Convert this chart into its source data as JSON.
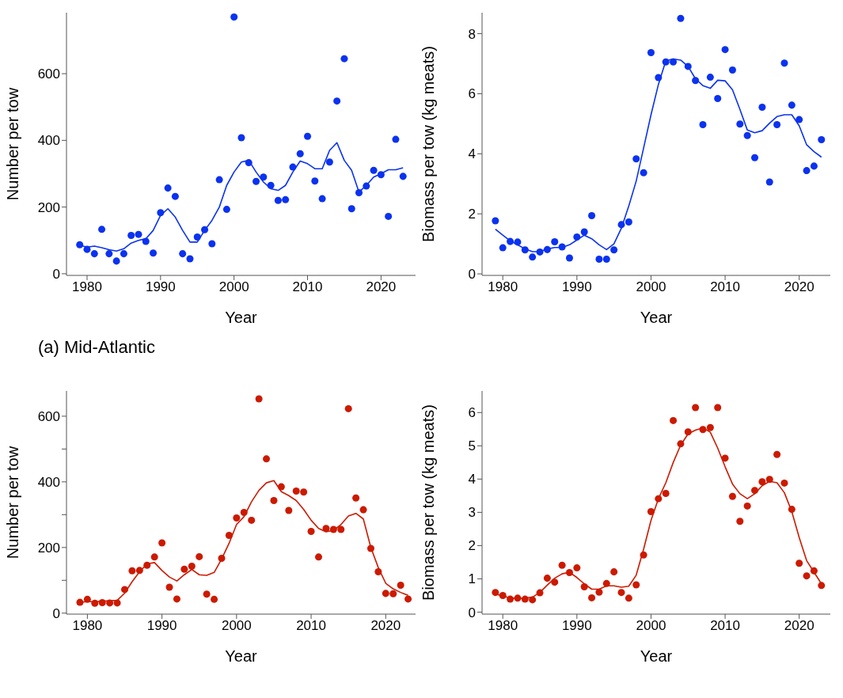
{
  "chart_data": [
    {
      "type": "scatter",
      "xlabel": "Year",
      "ylabel": "Number per tow",
      "annotations": [
        "(a) Mid-Atlantic"
      ],
      "line_style": "solid",
      "x": [
        1979,
        1980,
        1981,
        1982,
        1983,
        1984,
        1985,
        1986,
        1987,
        1988,
        1989,
        1990,
        1991,
        1992,
        1993,
        1994,
        1995,
        1996,
        1997,
        1998,
        1999,
        2000,
        2001,
        2002,
        2003,
        2004,
        2005,
        2006,
        2007,
        2008,
        2009,
        2010,
        2011,
        2012,
        2013,
        2014,
        2015,
        2016,
        2017,
        2018,
        2019,
        2020,
        2021,
        2022,
        2023
      ],
      "xlim": [
        1977.2,
        2024.7
      ],
      "xticks": [
        1980,
        1990,
        2000,
        2010,
        2020
      ],
      "ylim": [
        -5,
        783
      ],
      "yticks": [
        0,
        200,
        400,
        600
      ],
      "series": [
        {
          "marker": "circle",
          "color": "#0a32f0",
          "values": [
            87,
            73,
            60,
            133,
            60,
            38,
            60,
            115,
            118,
            97,
            62,
            183,
            257,
            232,
            60,
            45,
            110,
            132,
            90,
            282,
            193,
            770,
            408,
            333,
            277,
            290,
            265,
            220,
            222,
            320,
            360,
            412,
            278,
            225,
            335,
            518,
            645,
            195,
            243,
            263,
            310,
            297,
            172,
            403,
            292
          ]
        },
        {
          "type": "line",
          "marker": "none",
          "color": "#0a32f0",
          "values": [
            85,
            80,
            83,
            78,
            72,
            68,
            75,
            92,
            100,
            105,
            130,
            175,
            195,
            170,
            130,
            95,
            95,
            130,
            160,
            200,
            265,
            305,
            335,
            340,
            305,
            275,
            255,
            250,
            265,
            305,
            338,
            330,
            315,
            315,
            370,
            393,
            340,
            310,
            245,
            265,
            290,
            300,
            312,
            312,
            318
          ]
        }
      ]
    },
    {
      "type": "scatter",
      "xlabel": "Year",
      "ylabel": "Biomass per tow (kg meats)",
      "line_style": "solid",
      "x": [
        1979,
        1980,
        1981,
        1982,
        1983,
        1984,
        1985,
        1986,
        1987,
        1988,
        1989,
        1990,
        1991,
        1992,
        1993,
        1994,
        1995,
        1996,
        1997,
        1998,
        1999,
        2000,
        2001,
        2002,
        2003,
        2004,
        2005,
        2006,
        2007,
        2008,
        2009,
        2010,
        2011,
        2012,
        2013,
        2014,
        2015,
        2016,
        2017,
        2018,
        2019,
        2020,
        2021,
        2022,
        2023
      ],
      "xlim": [
        1977.2,
        2024.2
      ],
      "xticks": [
        1980,
        1990,
        2000,
        2010,
        2020
      ],
      "ylim": [
        -0.05,
        8.7
      ],
      "yticks": [
        0,
        2,
        4,
        6,
        8
      ],
      "series": [
        {
          "marker": "circle",
          "color": "#0a32f0",
          "values": [
            1.77,
            0.87,
            1.08,
            1.06,
            0.8,
            0.56,
            0.73,
            0.81,
            1.07,
            0.9,
            0.53,
            1.23,
            1.4,
            1.94,
            0.49,
            0.49,
            0.8,
            1.64,
            1.73,
            3.83,
            3.37,
            7.37,
            6.54,
            7.06,
            7.06,
            8.51,
            6.91,
            6.44,
            4.97,
            6.55,
            5.84,
            7.47,
            6.79,
            4.99,
            4.61,
            3.87,
            5.55,
            3.06,
            4.97,
            7.02,
            5.62,
            5.14,
            3.44,
            3.59,
            4.47
          ]
        },
        {
          "type": "line",
          "marker": "none",
          "color": "#0a32f0",
          "values": [
            1.49,
            1.29,
            1.1,
            0.97,
            0.83,
            0.74,
            0.74,
            0.83,
            0.88,
            0.88,
            0.97,
            1.13,
            1.29,
            1.17,
            0.97,
            0.81,
            1.0,
            1.52,
            2.26,
            3.09,
            4.19,
            5.3,
            6.31,
            7.1,
            7.16,
            7.12,
            6.91,
            6.5,
            6.27,
            6.18,
            6.45,
            6.43,
            6.13,
            5.48,
            4.79,
            4.7,
            4.77,
            5.02,
            5.24,
            5.3,
            5.3,
            4.93,
            4.3,
            4.07,
            3.89
          ]
        }
      ]
    },
    {
      "type": "scatter",
      "xlabel": "Year",
      "ylabel": "Number per tow",
      "line_style": "solid",
      "x": [
        1979,
        1980,
        1981,
        1982,
        1983,
        1984,
        1985,
        1986,
        1987,
        1988,
        1989,
        1990,
        1991,
        1992,
        1993,
        1994,
        1995,
        1996,
        1997,
        1998,
        1999,
        2000,
        2001,
        2002,
        2003,
        2004,
        2005,
        2006,
        2007,
        2008,
        2009,
        2010,
        2011,
        2012,
        2013,
        2014,
        2015,
        2016,
        2017,
        2018,
        2019,
        2020,
        2021,
        2022,
        2023
      ],
      "xlim": [
        1977.2,
        2024.0
      ],
      "xticks": [
        1980,
        1990,
        2000,
        2010,
        2020
      ],
      "ylim": [
        -3,
        677
      ],
      "yticks": [
        0,
        {
          "value": 100,
          "label": null
        },
        200,
        {
          "value": 300,
          "label": null
        },
        400,
        {
          "value": 500,
          "label": null
        },
        600
      ],
      "series": [
        {
          "marker": "circle",
          "color": "#cc1a00",
          "values": [
            33,
            42,
            30,
            32,
            31,
            31,
            72,
            129,
            130,
            146,
            171,
            214,
            79,
            43,
            134,
            143,
            172,
            58,
            42,
            167,
            237,
            290,
            307,
            283,
            653,
            470,
            343,
            385,
            313,
            372,
            369,
            249,
            171,
            258,
            255,
            255,
            623,
            351,
            315,
            197,
            126,
            60,
            59,
            85,
            43
          ]
        },
        {
          "type": "line",
          "marker": "none",
          "color": "#cc1a00",
          "values": [
            33,
            35,
            35,
            36,
            38,
            39,
            61,
            96,
            126,
            150,
            154,
            130,
            110,
            98,
            117,
            133,
            117,
            115,
            124,
            165,
            213,
            270,
            294,
            339,
            374,
            397,
            404,
            370,
            358,
            343,
            316,
            283,
            258,
            248,
            252,
            270,
            296,
            304,
            287,
            200,
            139,
            91,
            74,
            63,
            54
          ]
        }
      ]
    },
    {
      "type": "scatter",
      "xlabel": "Year",
      "ylabel": "Biomass per tow (kg meats)",
      "line_style": "solid",
      "x": [
        1979,
        1980,
        1981,
        1982,
        1983,
        1984,
        1985,
        1986,
        1987,
        1988,
        1989,
        1990,
        1991,
        1992,
        1993,
        1994,
        1995,
        1996,
        1997,
        1998,
        1999,
        2000,
        2001,
        2002,
        2003,
        2004,
        2005,
        2006,
        2007,
        2008,
        2009,
        2010,
        2011,
        2012,
        2013,
        2014,
        2015,
        2016,
        2017,
        2018,
        2019,
        2020,
        2021,
        2022,
        2023
      ],
      "xlim": [
        1977.2,
        2024.2
      ],
      "xticks": [
        1980,
        1990,
        2000,
        2010,
        2020
      ],
      "ylim": [
        -0.06,
        6.65
      ],
      "yticks": [
        0,
        1,
        2,
        3,
        4,
        5,
        6
      ],
      "series": [
        {
          "marker": "circle",
          "color": "#cc1a00",
          "values": [
            0.59,
            0.5,
            0.39,
            0.42,
            0.39,
            0.37,
            0.58,
            1.02,
            0.9,
            1.41,
            1.19,
            1.33,
            0.76,
            0.43,
            0.6,
            0.86,
            1.21,
            0.59,
            0.42,
            0.82,
            1.72,
            3.02,
            3.41,
            3.57,
            5.76,
            5.06,
            5.42,
            6.15,
            5.49,
            5.55,
            6.15,
            4.63,
            3.48,
            2.73,
            3.19,
            3.66,
            3.92,
            3.99,
            4.74,
            3.88,
            3.09,
            1.47,
            1.09,
            1.24,
            0.8
          ]
        },
        {
          "type": "line",
          "marker": "none",
          "color": "#cc1a00",
          "values": [
            0.55,
            0.48,
            0.43,
            0.41,
            0.42,
            0.45,
            0.59,
            0.81,
            1.02,
            1.15,
            1.2,
            1.04,
            0.85,
            0.69,
            0.69,
            0.79,
            0.79,
            0.75,
            0.78,
            1.11,
            1.89,
            2.76,
            3.41,
            3.89,
            4.5,
            5.02,
            5.36,
            5.47,
            5.54,
            5.41,
            4.93,
            4.37,
            3.85,
            3.56,
            3.41,
            3.56,
            3.8,
            3.93,
            3.89,
            3.59,
            3.02,
            2.24,
            1.55,
            1.2,
            0.85
          ]
        }
      ]
    }
  ]
}
